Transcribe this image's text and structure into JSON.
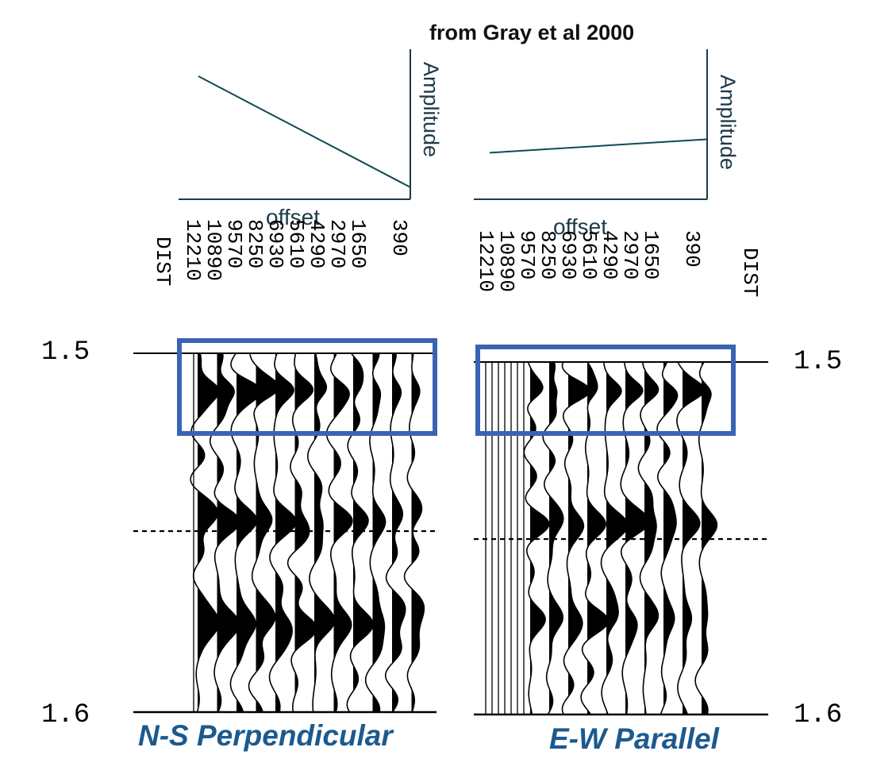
{
  "figure": {
    "title": "from Gray et al 2000",
    "colors": {
      "axis": "#1d3a4a",
      "box": "#3a63b5",
      "caption": "#1b5a8e",
      "wiggle": "#000000"
    }
  },
  "panels": [
    {
      "id": "ns",
      "caption": "N-S Perpendicular",
      "amplitude_axis_label": "Amplitude",
      "offset_axis_label": "offset",
      "dist_label": "DIST",
      "offset_ticks": [
        "12210",
        "10890",
        "9570",
        "8250",
        "6930",
        "5610",
        "4290",
        "2970",
        "1650",
        "390"
      ],
      "time_top_label": "1.5",
      "time_bottom_label": "1.6",
      "amplitude_trend": {
        "near_offset_amplitude": 0.08,
        "far_offset_amplitude": 0.82,
        "description_trend": "decreasing"
      }
    },
    {
      "id": "ew",
      "caption": "E-W Parallel",
      "amplitude_axis_label": "Amplitude",
      "offset_axis_label": "offset",
      "dist_label": "DIST",
      "offset_ticks": [
        "12210",
        "10890",
        "9570",
        "8250",
        "6930",
        "5610",
        "4290",
        "2970",
        "1650",
        "390"
      ],
      "time_top_label": "1.5",
      "time_bottom_label": "1.6",
      "amplitude_trend": {
        "near_offset_amplitude": 0.4,
        "far_offset_amplitude": 0.31,
        "description_trend": "flat"
      }
    }
  ]
}
